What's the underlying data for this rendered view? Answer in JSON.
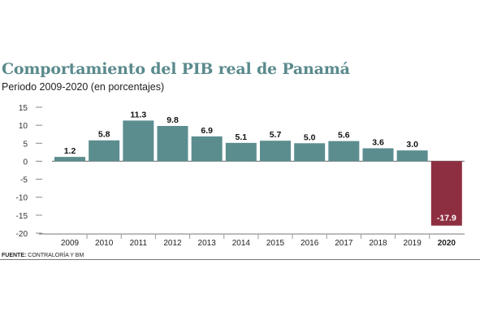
{
  "header": {
    "title": "Comportamiento del PIB real de Panamá",
    "subtitle": "Periodo 2009-2020 (en porcentajes)"
  },
  "footer": {
    "source_label": "FUENTE:",
    "source_text": "CONTRALORÍA Y BM"
  },
  "colors": {
    "title": "#5a8a8c",
    "bar_positive": "#5b8d8f",
    "bar_negative": "#8e2f41"
  },
  "chart_data": {
    "type": "bar",
    "title": "Comportamiento del PIB real de Panamá",
    "subtitle": "Periodo 2009-2020 (en porcentajes)",
    "categories": [
      "2009",
      "2010",
      "2011",
      "2012",
      "2013",
      "2014",
      "2015",
      "2016",
      "2017",
      "2018",
      "2019",
      "2020"
    ],
    "values": [
      1.2,
      5.8,
      11.3,
      9.8,
      6.9,
      5.1,
      5.7,
      5.0,
      5.6,
      3.6,
      3.0,
      -17.9
    ],
    "value_labels": [
      "1.2",
      "5.8",
      "11.3",
      "9.8",
      "6.9",
      "5.1",
      "5.7",
      "5.0",
      "5.6",
      "3.6",
      "3.0",
      "-17.9"
    ],
    "yticks": [
      15,
      10,
      5,
      0,
      -5,
      -10,
      -15,
      -20
    ],
    "ytick_labels": [
      "15",
      "10",
      "5",
      "0",
      "-5",
      "-10",
      "-15",
      "-20"
    ],
    "ylim": [
      -20,
      15
    ],
    "highlight_category": "2020",
    "grid": false
  }
}
